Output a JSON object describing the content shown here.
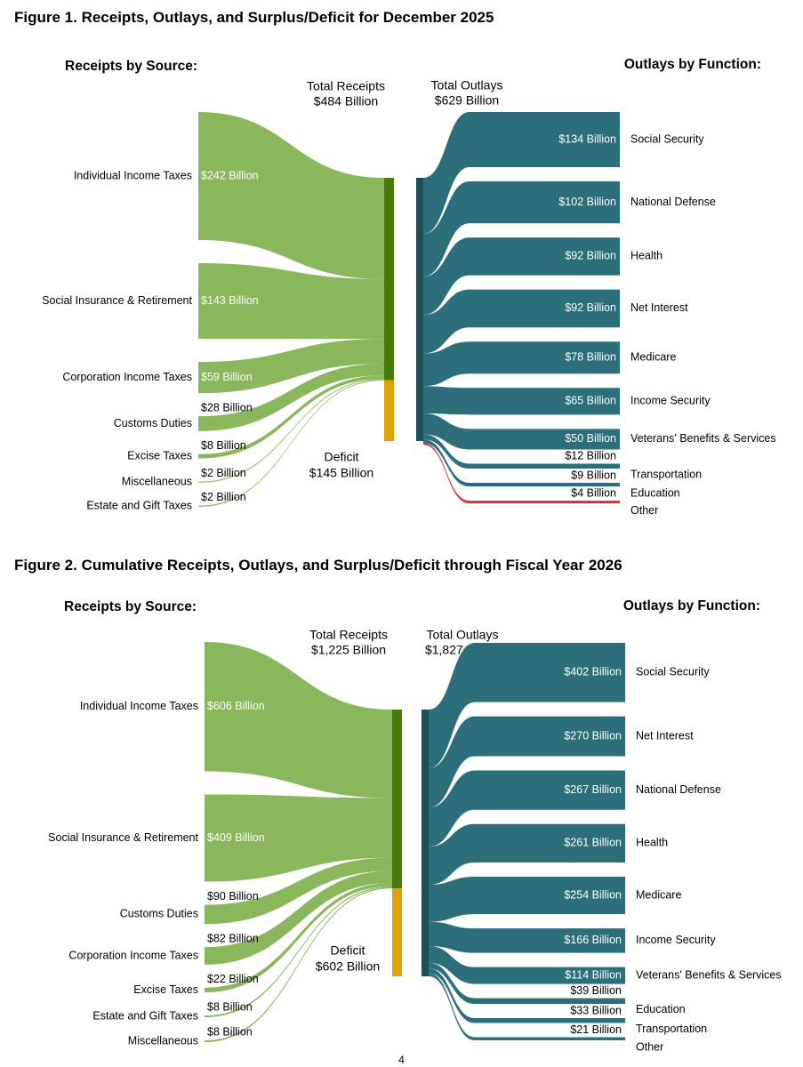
{
  "figure1": {
    "title": "Figure 1. Receipts, Outlays, and Surplus/Deficit for December 2025",
    "receipts_heading": "Receipts by Source:",
    "outlays_heading": "Outlays by Function:",
    "total_receipts_label": [
      "Total Receipts",
      "$484 Billion"
    ],
    "total_outlays_label": [
      "Total Outlays",
      "$629 Billion"
    ],
    "deficit_label": [
      "Deficit",
      "$145 Billion"
    ]
  },
  "figure2": {
    "title": "Figure 2. Cumulative Receipts, Outlays, and Surplus/Deficit through Fiscal Year 2026",
    "receipts_heading": "Receipts by Source:",
    "outlays_heading": "Outlays by Function:",
    "total_receipts_label": [
      "Total Receipts",
      "$1,225 Billion"
    ],
    "total_outlays_label": [
      "Total Outlays",
      "$1,827 Billion"
    ],
    "deficit_label": [
      "Deficit",
      "$602 Billion"
    ]
  },
  "page_number": "4",
  "colors": {
    "receipts": "#8ab75c",
    "receipts_bar": "#4a7a0c",
    "deficit": "#e0a000",
    "outlays": "#2c6f7b",
    "outlays_bar": "#1e4d55",
    "other_dec": "#d1303c"
  },
  "chart_data": [
    {
      "type": "sankey",
      "title": "Figure 1. Receipts, Outlays, and Surplus/Deficit for December 2025",
      "units": "Billions of dollars",
      "total_receipts": 484,
      "total_outlays": 629,
      "deficit": 145,
      "receipts": [
        {
          "name": "Individual Income Taxes",
          "value": 242,
          "label": "$242 Billion"
        },
        {
          "name": "Social Insurance & Retirement",
          "value": 143,
          "label": "$143 Billion"
        },
        {
          "name": "Corporation Income Taxes",
          "value": 59,
          "label": "$59 Billion"
        },
        {
          "name": "Customs Duties",
          "value": 28,
          "label": "$28 Billion"
        },
        {
          "name": "Excise Taxes",
          "value": 8,
          "label": "$8 Billion"
        },
        {
          "name": "Miscellaneous",
          "value": 2,
          "label": "$2 Billion"
        },
        {
          "name": "Estate and Gift Taxes",
          "value": 2,
          "label": "$2 Billion"
        }
      ],
      "outlays": [
        {
          "name": "Social Security",
          "value": 134,
          "label": "$134 Billion"
        },
        {
          "name": "National Defense",
          "value": 102,
          "label": "$102 Billion"
        },
        {
          "name": "Health",
          "value": 92,
          "label": "$92 Billion"
        },
        {
          "name": "Net Interest",
          "value": 92,
          "label": "$92 Billion"
        },
        {
          "name": "Medicare",
          "value": 78,
          "label": "$78 Billion"
        },
        {
          "name": "Income Security",
          "value": 65,
          "label": "$65 Billion"
        },
        {
          "name": "Veterans' Benefits & Services",
          "value": 50,
          "label": "$50 Billion"
        },
        {
          "name": "Transportation",
          "value": 12,
          "label": "$12 Billion"
        },
        {
          "name": "Education",
          "value": 9,
          "label": "$9 Billion"
        },
        {
          "name": "Other",
          "value": 4,
          "label": "$4 Billion",
          "highlight": true
        }
      ]
    },
    {
      "type": "sankey",
      "title": "Figure 2. Cumulative Receipts, Outlays, and Surplus/Deficit through Fiscal Year 2026",
      "units": "Billions of dollars",
      "total_receipts": 1225,
      "total_outlays": 1827,
      "deficit": 602,
      "receipts": [
        {
          "name": "Individual Income Taxes",
          "value": 606,
          "label": "$606 Billion"
        },
        {
          "name": "Social Insurance & Retirement",
          "value": 409,
          "label": "$409 Billion"
        },
        {
          "name": "Customs Duties",
          "value": 90,
          "label": "$90 Billion"
        },
        {
          "name": "Corporation Income Taxes",
          "value": 82,
          "label": "$82 Billion"
        },
        {
          "name": "Excise Taxes",
          "value": 22,
          "label": "$22 Billion"
        },
        {
          "name": "Estate and Gift Taxes",
          "value": 8,
          "label": "$8 Billion"
        },
        {
          "name": "Miscellaneous",
          "value": 8,
          "label": "$8 Billion"
        }
      ],
      "outlays": [
        {
          "name": "Social Security",
          "value": 402,
          "label": "$402 Billion"
        },
        {
          "name": "Net Interest",
          "value": 270,
          "label": "$270 Billion"
        },
        {
          "name": "National Defense",
          "value": 267,
          "label": "$267 Billion"
        },
        {
          "name": "Health",
          "value": 261,
          "label": "$261 Billion"
        },
        {
          "name": "Medicare",
          "value": 254,
          "label": "$254 Billion"
        },
        {
          "name": "Income Security",
          "value": 166,
          "label": "$166 Billion"
        },
        {
          "name": "Veterans' Benefits & Services",
          "value": 114,
          "label": "$114 Billion"
        },
        {
          "name": "Education",
          "value": 39,
          "label": "$39 Billion"
        },
        {
          "name": "Transportation",
          "value": 33,
          "label": "$33 Billion"
        },
        {
          "name": "Other",
          "value": 21,
          "label": "$21 Billion"
        }
      ]
    }
  ]
}
